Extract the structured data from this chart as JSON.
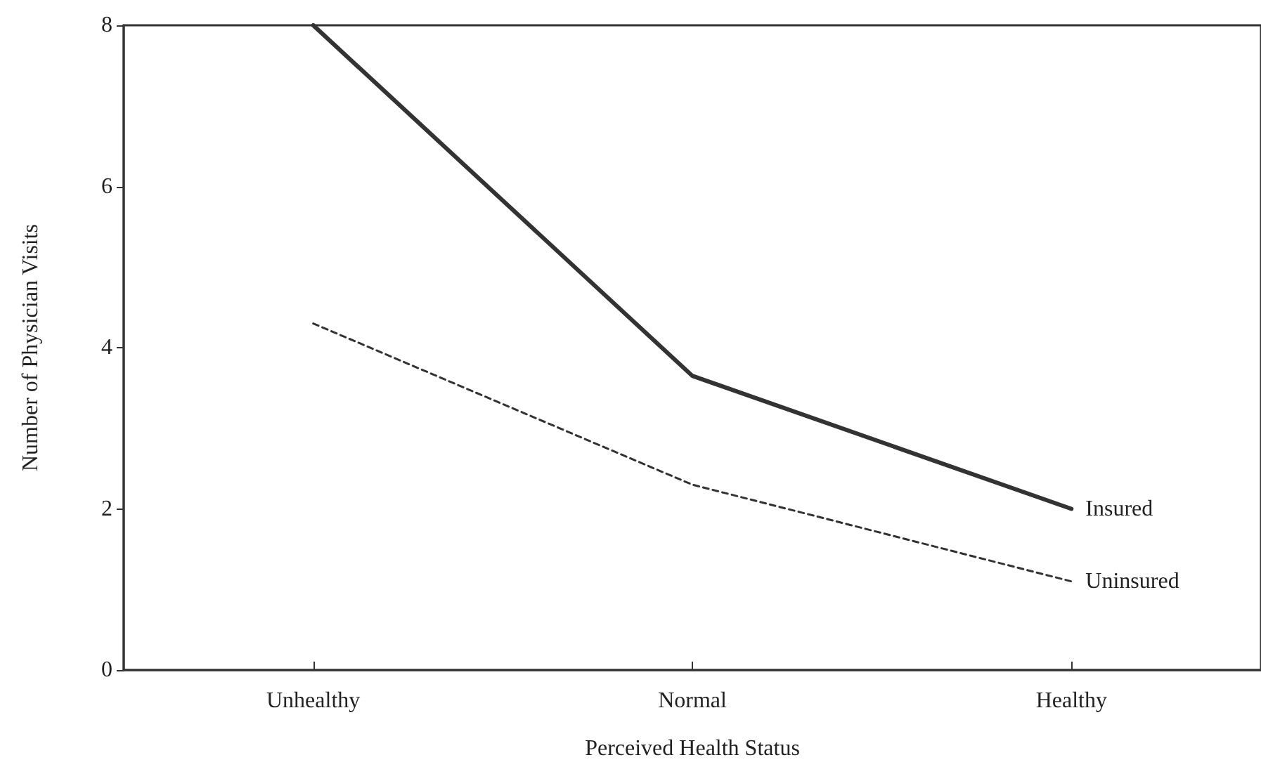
{
  "chart_data": {
    "type": "line",
    "xlabel": "Perceived Health Status",
    "ylabel": "Number of Physician Visits",
    "categories": [
      "Unhealthy",
      "Normal",
      "Healthy"
    ],
    "series": [
      {
        "name": "Insured",
        "color": "#333333",
        "line_style": "solid",
        "values": [
          8.0,
          3.65,
          2.0
        ]
      },
      {
        "name": "Uninsured",
        "color": "#333333",
        "line_style": "dashed",
        "values": [
          4.3,
          2.3,
          1.1
        ]
      }
    ],
    "ylim": [
      0,
      8
    ],
    "yticks": [
      0,
      2,
      4,
      6,
      8
    ],
    "grid": false,
    "marker": "none"
  }
}
